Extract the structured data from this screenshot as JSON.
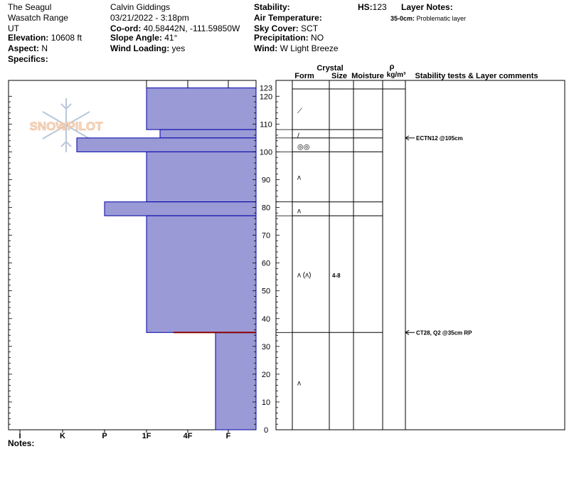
{
  "header": {
    "location": "The Seagul",
    "range": "Wasatch Range",
    "state": "UT",
    "elevation_label": "Elevation:",
    "elevation_value": "10608 ft",
    "aspect_label": "Aspect:",
    "aspect_value": "N",
    "specifics_label": "Specifics:",
    "observer": "Calvin Giddings",
    "datetime": "03/21/2022 - 3:18pm",
    "coord_label": "Co-ord:",
    "coord_value": "40.58442N, -111.59850W",
    "slope_label": "Slope Angle:",
    "slope_value": "41°",
    "wind_loading_label": "Wind Loading:",
    "wind_loading_value": "yes",
    "stability_label": "Stability:",
    "air_temp_label": "Air Temperature:",
    "sky_label": "Sky Cover:",
    "sky_value": "SCT",
    "precip_label": "Precipitation:",
    "precip_value": "NO",
    "wind_label": "Wind:",
    "wind_value": "W Light Breeze",
    "hs_label": "HS:",
    "hs_value": "123",
    "layer_notes_label": "Layer Notes:",
    "layer_note_range": "35-0cm:",
    "layer_note_text": "Problematic layer"
  },
  "watermark": "SNOWPILOT",
  "notes_label": "Notes:",
  "columns": {
    "crystal": "Crystal",
    "form": "Form",
    "size": "Size",
    "moisture": "Moisture",
    "rho": "ρ",
    "density_unit": "kg/m³",
    "stability": "Stability tests & Layer comments"
  },
  "crystal_size": "4-8",
  "tests": [
    {
      "label": "ECTN12 @105cm",
      "depth": 105
    },
    {
      "label": "CT28, Q2 @35cm  RP",
      "depth": 35
    }
  ],
  "colors": {
    "hardness_fill": "#9a9ad6",
    "hardness_stroke": "#0000aa",
    "problem_line": "#8b0000"
  },
  "chart_data": {
    "type": "bar",
    "xlabel": "",
    "ylabel": "",
    "x_tick_labels": [
      "I",
      "K",
      "P",
      "1F",
      "4F",
      "F"
    ],
    "y_ticks": [
      0,
      10,
      20,
      30,
      40,
      50,
      60,
      70,
      80,
      90,
      100,
      110,
      120,
      123
    ],
    "ylim": [
      0,
      123
    ],
    "layers": [
      {
        "bottom": 108,
        "top": 123,
        "hardness": "1F"
      },
      {
        "bottom": 105,
        "top": 108,
        "hardness": "4F+"
      },
      {
        "bottom": 100,
        "top": 105,
        "hardness": "P+"
      },
      {
        "bottom": 82,
        "top": 100,
        "hardness": "1F"
      },
      {
        "bottom": 77,
        "top": 82,
        "hardness": "P"
      },
      {
        "bottom": 35,
        "top": 77,
        "hardness": "1F"
      },
      {
        "bottom": 0,
        "top": 35,
        "hardness": "4F-"
      }
    ],
    "grain_forms": [
      {
        "depth": 115,
        "symbol": "⟋"
      },
      {
        "depth": 106,
        "symbol": "/"
      },
      {
        "depth": 102,
        "symbol": "◎◎"
      },
      {
        "depth": 91,
        "symbol": "ʌ"
      },
      {
        "depth": 79,
        "symbol": "ʌ"
      },
      {
        "depth": 56,
        "symbol": "ʌ (ʌ)"
      },
      {
        "depth": 17,
        "symbol": "ʌ"
      }
    ]
  }
}
